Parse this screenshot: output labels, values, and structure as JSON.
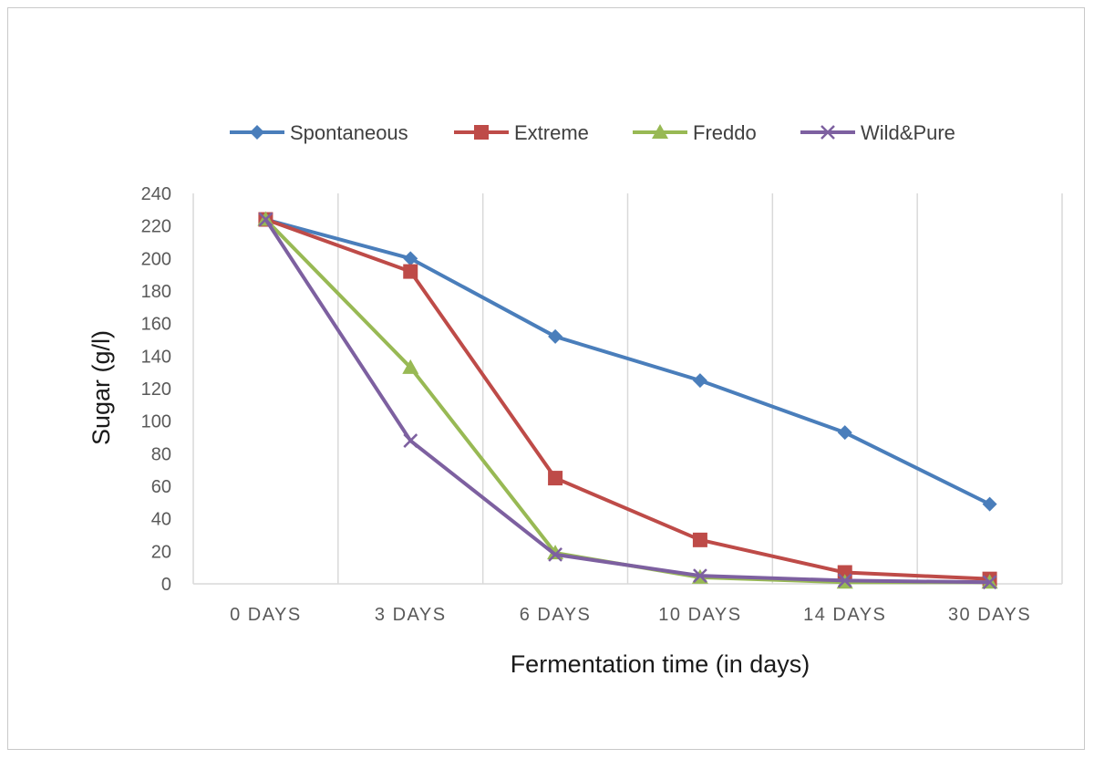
{
  "chart_data": {
    "type": "line",
    "categories": [
      "0 DAYS",
      "3 DAYS",
      "6 DAYS",
      "10 DAYS",
      "14 DAYS",
      "30 DAYS"
    ],
    "xlabel": "Fermentation time (in days)",
    "ylabel": "Sugar (g/l)",
    "ylim": [
      0,
      240
    ],
    "yticks": [
      0,
      20,
      40,
      60,
      80,
      100,
      120,
      140,
      160,
      180,
      200,
      220,
      240
    ],
    "grid": "vertical",
    "legend": "top",
    "series": [
      {
        "name": "Spontaneous",
        "color": "#4a7ebb",
        "marker": "diamond",
        "values": [
          224,
          200,
          152,
          125,
          93,
          49
        ]
      },
      {
        "name": "Extreme",
        "color": "#be4b48",
        "marker": "square",
        "values": [
          224,
          192,
          65,
          27,
          7,
          3
        ]
      },
      {
        "name": "Freddo",
        "color": "#98b954",
        "marker": "triangle",
        "values": [
          224,
          133,
          19,
          4,
          1,
          1
        ]
      },
      {
        "name": "Wild&Pure",
        "color": "#7d60a0",
        "marker": "x",
        "values": [
          224,
          88,
          18,
          5,
          2,
          1
        ]
      }
    ]
  }
}
